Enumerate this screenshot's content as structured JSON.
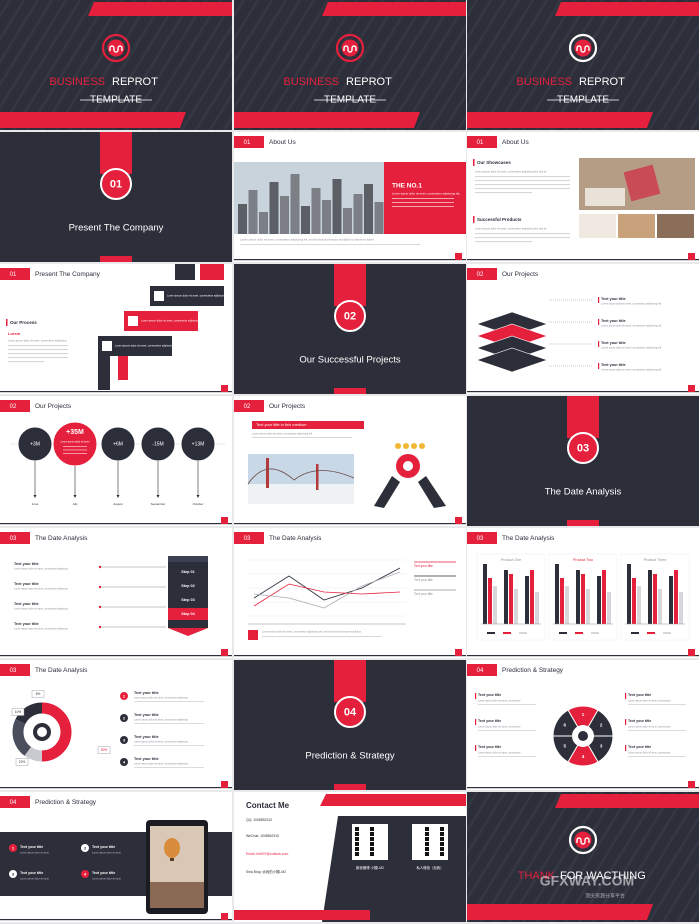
{
  "slides": [
    {
      "word1": "BUSINESS",
      "word2": "REPROT",
      "word3": "TEMPLATE"
    },
    {
      "word1": "BUSINESS",
      "word2": "REPROT",
      "word3": "TEMPLATE"
    },
    {
      "word1": "BUSINESS",
      "word2": "REPROT",
      "word3": "TEMPLATE"
    },
    {
      "number": "01",
      "title": "Present The Company"
    },
    {
      "number": "01",
      "title": "About Us",
      "heading": "THE NO.1",
      "body": "Lorem ipsum dolor sit amet, consectetur adipiscing elit,",
      "footer": "Lorem ipsum dolor sit amet, consectetur adipiscing elit, sed do eiusmod tempor incididunt ut labore et dolore"
    },
    {
      "number": "01",
      "title": "About Us",
      "heading1": "Our Showcases",
      "body1": "Lorem ipsum dolor sit amet, consectetur adipiscing elit, sed do",
      "heading2": "Successful Products",
      "body2": "Lorem ipsum dolor sit amet, consectetur adipiscing elit, sed do"
    },
    {
      "number": "01",
      "title": "Present The Company",
      "heading": "Our Process",
      "lead": "Lorem",
      "body": "Lorem ipsum dolor sit amet, consectetur adipiscing",
      "items": [
        "Lorem ipsum dolor sit amet, consectetur adipiscing.",
        "Lorem ipsum dolor sit amet, consectetur adipiscing.",
        "Lorem ipsum dolor sit amet, consectetur adipiscing."
      ]
    },
    {
      "number": "02",
      "title": "Our Successful Projects"
    },
    {
      "number": "02",
      "title": "Our Projects",
      "items": [
        {
          "title": "Text your title",
          "body": "Lorem ipsum dolor sit amet, consectetur adipiscing elit"
        },
        {
          "title": "Text your title",
          "body": "Lorem ipsum dolor sit amet, consectetur adipiscing elit"
        },
        {
          "title": "Text your title",
          "body": "Lorem ipsum dolor sit amet, consectetur adipiscing elit"
        },
        {
          "title": "Text your title",
          "body": "Lorem ipsum dolor sit amet, consectetur adipiscing elit"
        }
      ]
    },
    {
      "number": "02",
      "title": "Our Projects",
      "circles": [
        "+3M",
        "+35M",
        "+6M",
        "-15M",
        "+13M"
      ],
      "note": "Lorem ipsum dolor sit amet",
      "months": [
        "June",
        "July",
        "August",
        "September",
        "October"
      ]
    },
    {
      "number": "02",
      "title": "Our Projects",
      "banner": "Text your title in this medium",
      "body": "Lorem ipsum dolor sit amet, consectetur adipiscing elit"
    },
    {
      "number": "03",
      "title": "The Date Analysis"
    },
    {
      "number": "03",
      "title": "The Date Analysis",
      "items": [
        {
          "title": "Text your title",
          "body": "Lorem ipsum dolor sit amet, consectetur adipiscing"
        },
        {
          "title": "Text your title",
          "body": "Lorem ipsum dolor sit amet, consectetur adipiscing"
        },
        {
          "title": "Text your title",
          "body": "Lorem ipsum dolor sit amet, consectetur adipiscing"
        },
        {
          "title": "Text your title",
          "body": "Lorem ipsum dolor sit amet, consectetur adipiscing"
        }
      ],
      "steps": [
        "Step 01",
        "Step 02",
        "Step 03",
        "Step 04"
      ]
    },
    {
      "number": "03",
      "title": "The Date Analysis",
      "legend": [
        "Text your title",
        "Text your title",
        "Text your title"
      ],
      "body": "Lorem ipsum dolor sit amet, consectetur adipiscing elit, sed do eiusmod tempor incididunt"
    },
    {
      "number": "03",
      "title": "The Date Analysis",
      "products": [
        "Product One",
        "Product Two",
        "Product Three"
      ]
    },
    {
      "number": "03",
      "title": "The Date Analysis",
      "percents": [
        "6%",
        "10%",
        "22%",
        "50%"
      ],
      "items": [
        {
          "num": "1",
          "title": "Text your title",
          "body": "Lorem ipsum dolor sit amet, consectetur adipiscing"
        },
        {
          "num": "2",
          "title": "Text your title",
          "body": "Lorem ipsum dolor sit amet, consectetur adipiscing"
        },
        {
          "num": "3",
          "title": "Text your title",
          "body": "Lorem ipsum dolor sit amet, consectetur adipiscing"
        },
        {
          "num": "4",
          "title": "Text your title",
          "body": "Lorem ipsum dolor sit amet, consectetur adipiscing"
        }
      ]
    },
    {
      "number": "04",
      "title": "Prediction & Strategy"
    },
    {
      "number": "04",
      "title": "Prediction & Strategy",
      "segments": [
        "1",
        "2",
        "3",
        "4",
        "5",
        "6"
      ],
      "items": [
        {
          "title": "Text your title",
          "body": "Lorem ipsum dolor sit amet, consectetur"
        },
        {
          "title": "Text your title",
          "body": "Lorem ipsum dolor sit amet, consectetur"
        },
        {
          "title": "Text your title",
          "body": "Lorem ipsum dolor sit amet, consectetur"
        },
        {
          "title": "Text your title",
          "body": "Lorem ipsum dolor sit amet, consectetur"
        },
        {
          "title": "Text your title",
          "body": "Lorem ipsum dolor sit amet, consectetur"
        },
        {
          "title": "Text your title",
          "body": "Lorem ipsum dolor sit amet, consectetur"
        }
      ]
    },
    {
      "number": "04",
      "title": "Prediction & Strategy",
      "items": [
        {
          "num": "1",
          "title": "Text your title",
          "body": "Lorem ipsum dolor sit amet"
        },
        {
          "num": "2",
          "title": "Text your title",
          "body": "Lorem ipsum dolor sit amet"
        },
        {
          "num": "3",
          "title": "Text your title",
          "body": "Lorem ipsum dolor sit amet"
        },
        {
          "num": "4",
          "title": "Text your title",
          "body": "Lorem ipsum dolor sit amet"
        }
      ]
    },
    {
      "title": "Contact Me",
      "lines": [
        "QQ: 1008552310",
        "WeChat: 1008552310",
        "Email: lmt007@outlook.com",
        "Sina Blog: @我的小猴LM2"
      ],
      "qr": [
        "新浪微博 小猴LM2",
        "私人微信（加我）"
      ]
    },
    {
      "word1": "THANK",
      "word2": "FOR WACTHING"
    }
  ],
  "watermark": {
    "brand": "GFXWAY.COM",
    "tagline": "顶尖资源分享平台"
  }
}
